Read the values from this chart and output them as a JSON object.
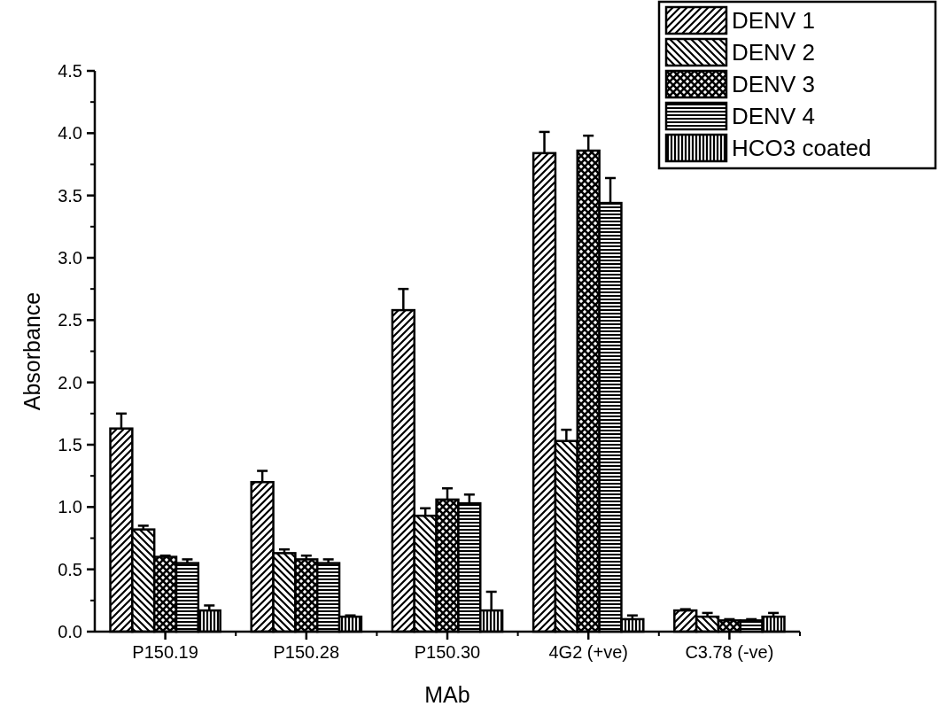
{
  "chart_data": {
    "type": "bar",
    "xlabel": "MAb",
    "ylabel": "Absorbance",
    "categories": [
      "P150.19",
      "P150.28",
      "P150.30",
      "4G2 (+ve)",
      "C3.78 (-ve)"
    ],
    "series": [
      {
        "name": "DENV 1",
        "color": "#000000",
        "values": [
          1.63,
          1.2,
          2.58,
          3.84,
          0.17
        ],
        "errors": [
          [
            1.63,
            1.75
          ],
          [
            1.2,
            1.29
          ],
          [
            2.58,
            2.75
          ],
          [
            3.84,
            4.01
          ],
          [
            0.17,
            0.18
          ]
        ]
      },
      {
        "name": "DENV 2",
        "color": "#000000",
        "values": [
          0.82,
          0.63,
          0.93,
          1.53,
          0.12
        ],
        "errors": [
          [
            0.82,
            0.85
          ],
          [
            0.63,
            0.66
          ],
          [
            0.93,
            0.99
          ],
          [
            1.53,
            1.62
          ],
          [
            0.12,
            0.15
          ]
        ]
      },
      {
        "name": "DENV 3",
        "color": "#000000",
        "values": [
          0.6,
          0.58,
          1.06,
          3.86,
          0.09
        ],
        "errors": [
          [
            0.6,
            0.61
          ],
          [
            0.58,
            0.61
          ],
          [
            1.06,
            1.15
          ],
          [
            3.86,
            3.98
          ],
          [
            0.09,
            0.1
          ]
        ]
      },
      {
        "name": "DENV 4",
        "color": "#000000",
        "values": [
          0.55,
          0.55,
          1.03,
          3.44,
          0.09
        ],
        "errors": [
          [
            0.55,
            0.58
          ],
          [
            0.55,
            0.58
          ],
          [
            1.03,
            1.1
          ],
          [
            3.44,
            3.64
          ],
          [
            0.09,
            0.1
          ]
        ]
      },
      {
        "name": "HCO3 coated",
        "color": "#000000",
        "values": [
          0.17,
          0.12,
          0.17,
          0.1,
          0.12
        ],
        "errors": [
          [
            0.17,
            0.21
          ],
          [
            0.12,
            0.13
          ],
          [
            0.17,
            0.32
          ],
          [
            0.1,
            0.13
          ],
          [
            0.12,
            0.15
          ]
        ]
      }
    ],
    "ylim": [
      0,
      4.5
    ],
    "yticks": [
      {
        "value": 0,
        "label": "0.0"
      },
      {
        "value": 0.5,
        "label": "0.5"
      },
      {
        "value": 1,
        "label": "1.0"
      },
      {
        "value": 1.5,
        "label": "1.5"
      },
      {
        "value": 2,
        "label": "2.0"
      },
      {
        "value": 2.5,
        "label": "2.5"
      },
      {
        "value": 3,
        "label": "3.0"
      },
      {
        "value": 3.5,
        "label": "3.5"
      },
      {
        "value": 4,
        "label": "4.0"
      },
      {
        "value": 4.5,
        "label": "4.5"
      }
    ],
    "legend": "top right",
    "grid": false
  }
}
